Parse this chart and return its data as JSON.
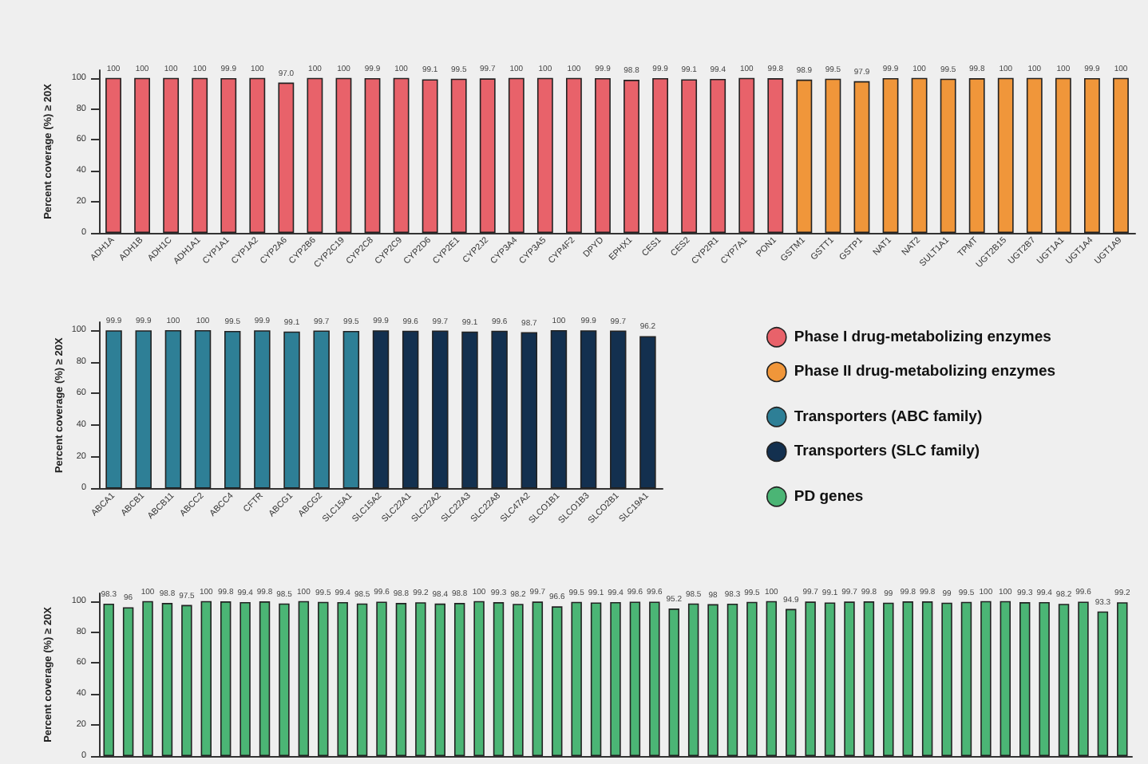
{
  "chart_data": [
    {
      "type": "bar",
      "ylabel": "Percent coverage (%) ≥ 20X",
      "categories": [
        "ADH1A",
        "ADH1B",
        "ADH1C",
        "ADH1A1",
        "CYP1A1",
        "CYP1A2",
        "CYP2A6",
        "CYP2B6",
        "CYP2C19",
        "CYP2C8",
        "CYP2C9",
        "CYP2D6",
        "CYP2E1",
        "CYP2J2",
        "CYP3A4",
        "CYP3A5",
        "CYP4F2",
        "DPYD",
        "EPHX1",
        "CES1",
        "CES2",
        "CYP2R1",
        "CYP7A1",
        "PON1",
        "GSTM1",
        "GSTT1",
        "GSTP1",
        "NAT1",
        "NAT2",
        "SULT1A1",
        "TPMT",
        "UGT2B15",
        "UGT2B7",
        "UGT1A1",
        "UGT1A4",
        "UGT1A9"
      ],
      "series": [
        {
          "name": "Phase I drug-metabolizing enzymes",
          "color": "#e8626a",
          "values": [
            100,
            100,
            100,
            100,
            99.9,
            100,
            97.0,
            100,
            100,
            99.9,
            100,
            99.1,
            99.5,
            99.7,
            100,
            100,
            100,
            99.9,
            98.8,
            99.9,
            99.1,
            99.4,
            100,
            99.8,
            null,
            null,
            null,
            null,
            null,
            null,
            null,
            null,
            null,
            null,
            null,
            null
          ],
          "value_labels": [
            "100",
            "100",
            "100",
            "100",
            "99.9",
            "100",
            "97.0",
            "100",
            "100",
            "99.9",
            "100",
            "99.1",
            "99.5",
            "99.7",
            "100",
            "100",
            "100",
            "99.9",
            "98.8",
            "99.9",
            "99.1",
            "99.4",
            "100",
            "99.8",
            null,
            null,
            null,
            null,
            null,
            null,
            null,
            null,
            null,
            null,
            null,
            null
          ]
        },
        {
          "name": "Phase II drug-metabolizing enzymes",
          "color": "#f0963a",
          "values": [
            null,
            null,
            null,
            null,
            null,
            null,
            null,
            null,
            null,
            null,
            null,
            null,
            null,
            null,
            null,
            null,
            null,
            null,
            null,
            null,
            null,
            null,
            null,
            null,
            98.9,
            99.5,
            97.9,
            99.9,
            100,
            99.5,
            99.8,
            100,
            100,
            100,
            99.9,
            100
          ],
          "value_labels": [
            null,
            null,
            null,
            null,
            null,
            null,
            null,
            null,
            null,
            null,
            null,
            null,
            null,
            null,
            null,
            null,
            null,
            null,
            null,
            null,
            null,
            null,
            null,
            null,
            "98.9",
            "99.5",
            "97.9",
            "99.9",
            "100",
            "99.5",
            "99.8",
            "100",
            "100",
            "100",
            "99.9",
            "100"
          ]
        }
      ],
      "ylim": [
        0,
        105
      ],
      "yticks": [
        0,
        20,
        40,
        60,
        80,
        100
      ],
      "legend": "right",
      "grid": false
    },
    {
      "type": "bar",
      "ylabel": "Percent coverage (%) ≥ 20X",
      "categories": [
        "ABCA1",
        "ABCB1",
        "ABCB11",
        "ABCC2",
        "ABCC4",
        "CFTR",
        "ABCG1",
        "ABCG2",
        "SLC15A1",
        "SLC15A2",
        "SLC22A1",
        "SLC22A2",
        "SLC22A3",
        "SLC22A8",
        "SLC47A2",
        "SLCO1B1",
        "SLCO1B3",
        "SLCO2B1",
        "SLC19A1"
      ],
      "series": [
        {
          "name": "Transporters (ABC family)",
          "color": "#2e7f96",
          "values": [
            99.9,
            99.9,
            100,
            100,
            99.5,
            99.9,
            99.1,
            99.7,
            99.5,
            null,
            null,
            null,
            null,
            null,
            null,
            null,
            null,
            null,
            null
          ],
          "value_labels": [
            "99.9",
            "99.9",
            "100",
            "100",
            "99.5",
            "99.9",
            "99.1",
            "99.7",
            "99.5",
            null,
            null,
            null,
            null,
            null,
            null,
            null,
            null,
            null,
            null
          ]
        },
        {
          "name": "Transporters (SLC family)",
          "color": "#13304f",
          "values": [
            null,
            null,
            null,
            null,
            null,
            null,
            null,
            null,
            null,
            99.9,
            99.6,
            99.7,
            99.1,
            99.6,
            98.7,
            100,
            99.9,
            99.7,
            96.2
          ],
          "value_labels": [
            null,
            null,
            null,
            null,
            null,
            null,
            null,
            null,
            null,
            "99.9",
            "99.6",
            "99.7",
            "99.1",
            "99.6",
            "98.7",
            "100",
            "99.9",
            "99.7",
            "96.2"
          ]
        }
      ],
      "ylim": [
        0,
        105
      ],
      "yticks": [
        0,
        20,
        40,
        60,
        80,
        100
      ],
      "legend": "right",
      "grid": false
    },
    {
      "type": "bar",
      "ylabel": "Percent coverage (%) ≥ 20X",
      "categories": [
        null,
        null,
        null,
        null,
        null,
        null,
        null,
        null,
        null,
        null,
        null,
        null,
        null,
        null,
        null,
        null,
        null,
        null,
        null,
        null,
        null,
        null,
        null,
        null,
        null,
        null,
        null,
        null,
        null,
        null,
        null,
        null,
        null,
        null,
        null,
        null,
        null,
        null,
        null,
        null,
        null,
        null,
        null,
        null,
        null,
        null,
        null,
        null,
        null,
        null,
        null,
        null,
        null
      ],
      "series": [
        {
          "name": "PD genes",
          "color": "#4bb575",
          "values": [
            98.3,
            96,
            100,
            98.8,
            97.5,
            100,
            99.8,
            99.4,
            99.8,
            98.5,
            100,
            99.5,
            99.4,
            98.5,
            99.6,
            98.8,
            99.2,
            98.4,
            98.8,
            100,
            99.3,
            98.2,
            99.7,
            96.6,
            99.5,
            99.1,
            99.4,
            99.6,
            99.6,
            95.2,
            98.5,
            98,
            98.3,
            99.5,
            100,
            94.9,
            99.7,
            99.1,
            99.7,
            99.8,
            99,
            99.8,
            99.8,
            99,
            99.5,
            100,
            100,
            99.3,
            99.4,
            98.2,
            99.6,
            93.3,
            99.2
          ],
          "value_labels": [
            "98.3",
            "96",
            "100",
            "98.8",
            "97.5",
            "100",
            "99.8",
            "99.4",
            "99.8",
            "98.5",
            "100",
            "99.5",
            "99.4",
            "98.5",
            "99.6",
            "98.8",
            "99.2",
            "98.4",
            "98.8",
            "100",
            "99.3",
            "98.2",
            "99.7",
            "96.6",
            "99.5",
            "99.1",
            "99.4",
            "99.6",
            "99.6",
            "95.2",
            "98.5",
            "98",
            "98.3",
            "99.5",
            "100",
            "94.9",
            "99.7",
            "99.1",
            "99.7",
            "99.8",
            "99",
            "99.8",
            "99.8",
            "99",
            "99.5",
            "100",
            "100",
            "99.3",
            "99.4",
            "98.2",
            "99.6",
            "93.3",
            "99.2"
          ]
        }
      ],
      "ylim": [
        0,
        105
      ],
      "yticks": [
        0,
        20,
        40,
        60,
        80,
        100
      ],
      "legend": "right",
      "grid": false
    }
  ]
}
